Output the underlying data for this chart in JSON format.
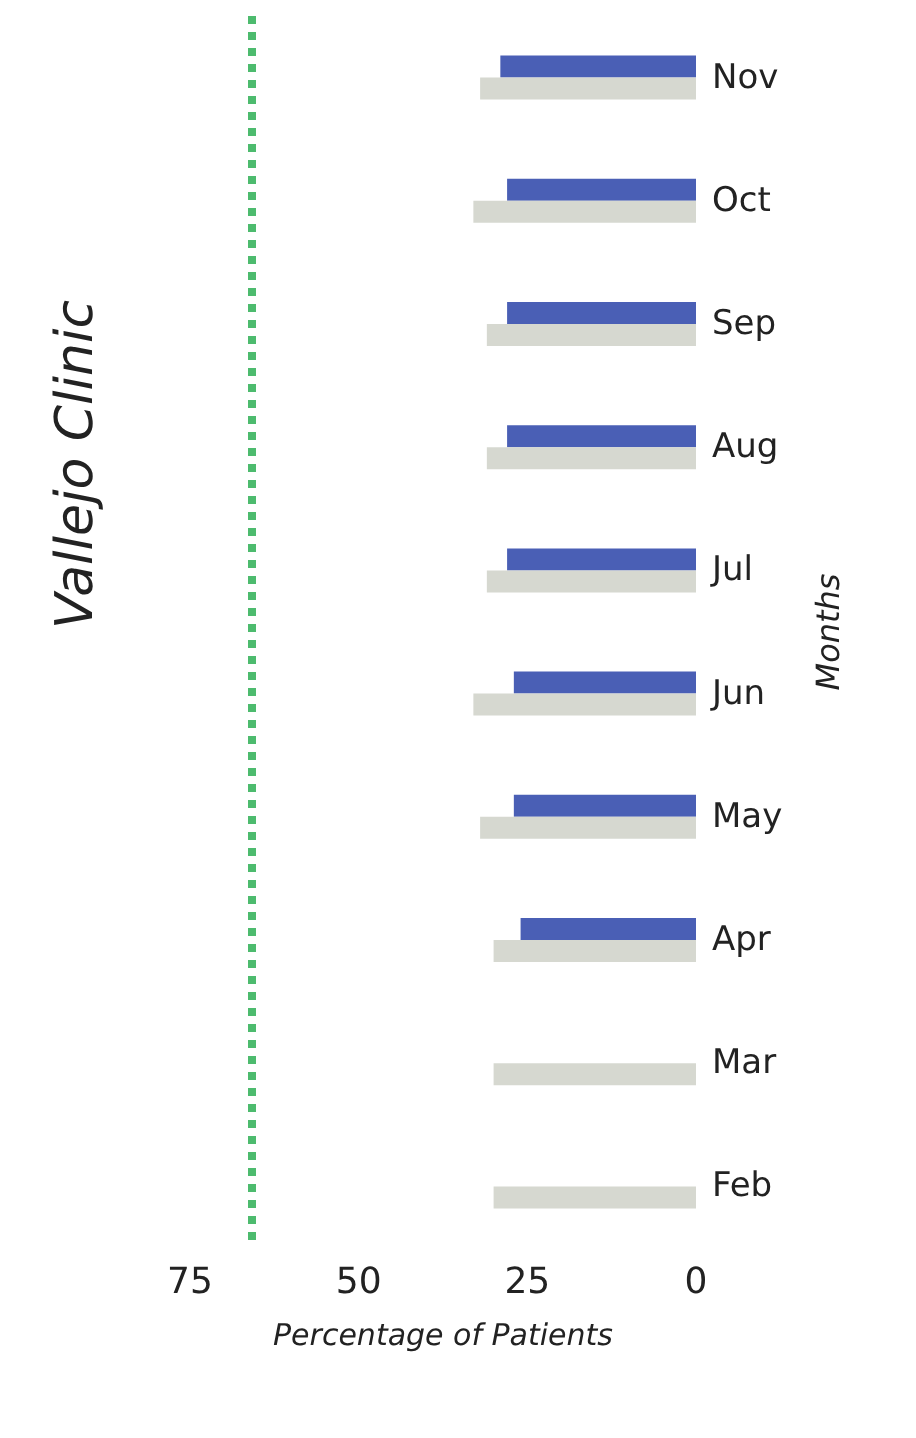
{
  "chart_data": {
    "type": "bar",
    "orientation": "horizontal",
    "title": "Vallejo Clinic",
    "xlabel": "Percentage of Patients",
    "ylabel": "Months",
    "categories": [
      "Nov",
      "Oct",
      "Sep",
      "Aug",
      "Jul",
      "Jun",
      "May",
      "Apr",
      "Mar",
      "Feb"
    ],
    "series": [
      {
        "color": "#4a5fb5",
        "values": [
          29,
          28,
          28,
          28,
          28,
          27,
          27,
          26,
          null,
          null
        ]
      },
      {
        "color": "#d6d8d0",
        "values": [
          32,
          33,
          31,
          31,
          31,
          33,
          32,
          30,
          30,
          30
        ]
      }
    ],
    "xlim": [
      75,
      0
    ],
    "xticks": [
      75,
      50,
      25,
      0
    ],
    "ref_lines": [
      {
        "axis": "x",
        "value": 66,
        "color": "#4dbb6e",
        "line_style": "dotted"
      }
    ],
    "grid": false
  }
}
